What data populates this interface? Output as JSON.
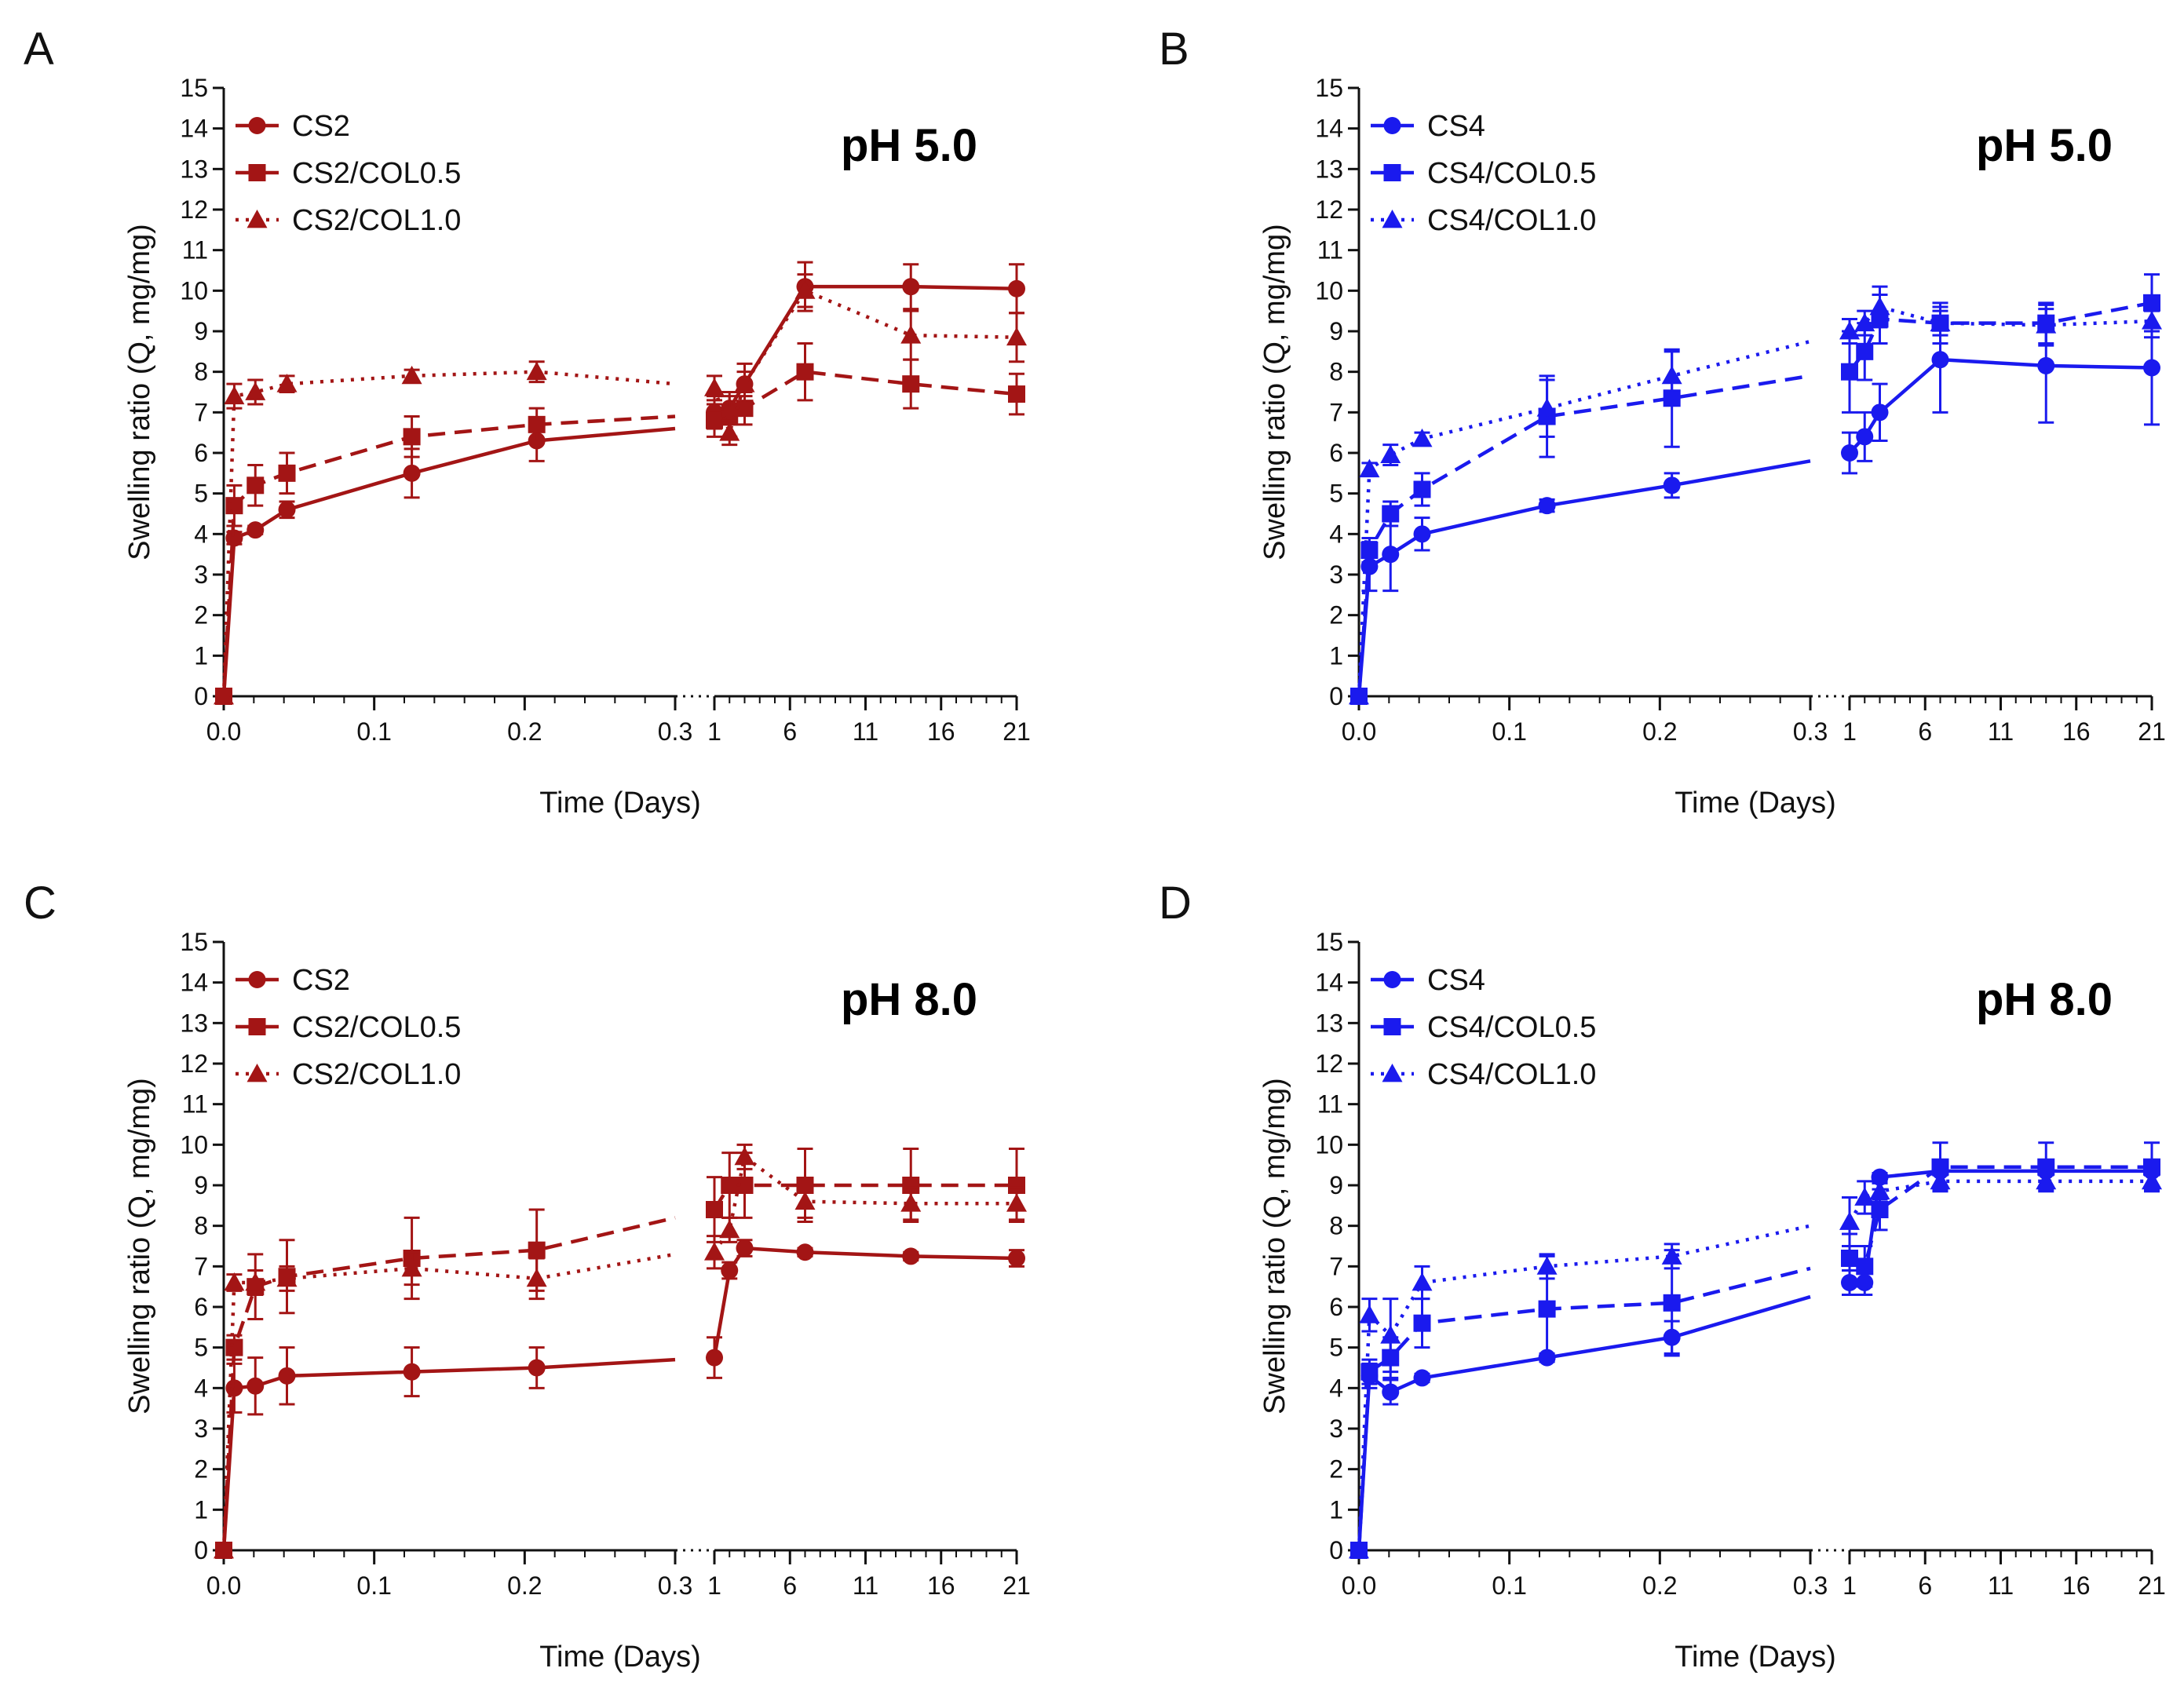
{
  "chart_data": [
    {
      "type": "line",
      "panel": "A",
      "annotation": "pH 5.0",
      "xlabel": "Time (Days)",
      "ylabel": "Swelling ratio (Q, mg/mg)",
      "ylim": [
        0,
        15
      ],
      "yticks": [
        "0",
        "1",
        "2",
        "3",
        "4",
        "5",
        "6",
        "7",
        "8",
        "9",
        "10",
        "11",
        "12",
        "13",
        "14",
        "15"
      ],
      "x_segments": [
        {
          "range": [
            0,
            0.3
          ],
          "ticks": [
            "0.0",
            "0.1",
            "0.2",
            "0.3"
          ]
        },
        {
          "range": [
            1,
            21
          ],
          "ticks": [
            "1",
            "6",
            "11",
            "16",
            "21"
          ]
        }
      ],
      "grid": false,
      "legend_position": "top-left",
      "color": "#a31515",
      "series": [
        {
          "name": "CS2",
          "marker": "circle",
          "line": "solid",
          "seg1": {
            "x": [
              0,
              0.007,
              0.021,
              0.042,
              0.125,
              0.208,
              0.3
            ],
            "y": [
              0,
              3.9,
              4.1,
              4.6,
              5.5,
              6.3,
              6.6
            ],
            "err": [
              0,
              0.15,
              0.1,
              0.2,
              0.6,
              0.5,
              0
            ]
          },
          "seg2": {
            "x": [
              1,
              2,
              3,
              7,
              14,
              21
            ],
            "y": [
              7.0,
              7.1,
              7.7,
              10.1,
              10.1,
              10.05
            ],
            "err": [
              0.4,
              0.4,
              0.5,
              0.6,
              0.55,
              0.6
            ]
          }
        },
        {
          "name": "CS2/COL0.5",
          "marker": "square",
          "line": "dashed",
          "seg1": {
            "x": [
              0,
              0.007,
              0.021,
              0.042,
              0.125,
              0.208,
              0.3
            ],
            "y": [
              0,
              4.7,
              5.2,
              5.5,
              6.4,
              6.7,
              6.9
            ],
            "err": [
              0,
              0.5,
              0.5,
              0.5,
              0.5,
              0.4,
              0
            ]
          },
          "seg2": {
            "x": [
              1,
              2,
              3,
              7,
              14,
              21
            ],
            "y": [
              6.8,
              6.9,
              7.1,
              8.0,
              7.7,
              7.45
            ],
            "err": [
              0.4,
              0.5,
              0.4,
              0.7,
              0.6,
              0.5
            ]
          }
        },
        {
          "name": "CS2/COL1.0",
          "marker": "triangle",
          "line": "dotted",
          "seg1": {
            "x": [
              0,
              0.007,
              0.021,
              0.042,
              0.125,
              0.208,
              0.3
            ],
            "y": [
              0,
              7.4,
              7.5,
              7.7,
              7.9,
              8.0,
              7.7
            ],
            "err": [
              0,
              0.3,
              0.3,
              0.2,
              0.15,
              0.25,
              0
            ]
          },
          "seg2": {
            "x": [
              1,
              2,
              3,
              7,
              14,
              21
            ],
            "y": [
              7.6,
              6.5,
              7.7,
              10.0,
              8.9,
              8.85
            ],
            "err": [
              0.3,
              0.3,
              0.3,
              0.4,
              0.6,
              0.6
            ]
          }
        }
      ]
    },
    {
      "type": "line",
      "panel": "B",
      "annotation": "pH 5.0",
      "xlabel": "Time (Days)",
      "ylabel": "Swelling ratio (Q, mg/mg)",
      "ylim": [
        0,
        15
      ],
      "yticks": [
        "0",
        "1",
        "2",
        "3",
        "4",
        "5",
        "6",
        "7",
        "8",
        "9",
        "10",
        "11",
        "12",
        "13",
        "14",
        "15"
      ],
      "x_segments": [
        {
          "range": [
            0,
            0.3
          ],
          "ticks": [
            "0.0",
            "0.1",
            "0.2",
            "0.3"
          ]
        },
        {
          "range": [
            1,
            21
          ],
          "ticks": [
            "1",
            "6",
            "11",
            "16",
            "21"
          ]
        }
      ],
      "grid": false,
      "legend_position": "top-left",
      "color": "#1a1aee",
      "series": [
        {
          "name": "CS4",
          "marker": "circle",
          "line": "solid",
          "seg1": {
            "x": [
              0,
              0.007,
              0.021,
              0.042,
              0.125,
              0.208,
              0.3
            ],
            "y": [
              0,
              3.2,
              3.5,
              4.0,
              4.7,
              5.2,
              5.8
            ],
            "err": [
              0,
              0.6,
              0.9,
              0.4,
              0.15,
              0.3,
              0
            ]
          },
          "seg2": {
            "x": [
              1,
              2,
              3,
              7,
              14,
              21
            ],
            "y": [
              6.0,
              6.4,
              7.0,
              8.3,
              8.15,
              8.1
            ],
            "err": [
              0.5,
              0.6,
              0.7,
              1.3,
              1.4,
              1.4
            ]
          }
        },
        {
          "name": "CS4/COL0.5",
          "marker": "square",
          "line": "dashed",
          "seg1": {
            "x": [
              0,
              0.007,
              0.021,
              0.042,
              0.125,
              0.208,
              0.3
            ],
            "y": [
              0,
              3.6,
              4.5,
              5.1,
              6.9,
              7.35,
              7.9
            ],
            "err": [
              0,
              0.3,
              0.3,
              0.4,
              1.0,
              1.2,
              0
            ]
          },
          "seg2": {
            "x": [
              1,
              2,
              3,
              7,
              14,
              21
            ],
            "y": [
              8.0,
              8.5,
              9.3,
              9.2,
              9.2,
              9.7
            ],
            "err": [
              1.0,
              0.7,
              0.6,
              0.5,
              0.5,
              0.7
            ]
          }
        },
        {
          "name": "CS4/COL1.0",
          "marker": "triangle",
          "line": "dotted",
          "seg1": {
            "x": [
              0,
              0.007,
              0.021,
              0.042,
              0.125,
              0.208,
              0.3
            ],
            "y": [
              0,
              5.6,
              5.95,
              6.35,
              7.1,
              7.9,
              8.75
            ],
            "err": [
              0,
              0.15,
              0.25,
              0.15,
              0.7,
              0.6,
              0
            ]
          },
          "seg2": {
            "x": [
              1,
              2,
              3,
              7,
              14,
              21
            ],
            "y": [
              9.0,
              9.2,
              9.6,
              9.2,
              9.15,
              9.25
            ],
            "err": [
              0.3,
              0.3,
              0.5,
              0.3,
              0.5,
              0.4
            ]
          }
        }
      ]
    },
    {
      "type": "line",
      "panel": "C",
      "annotation": "pH 8.0",
      "xlabel": "Time (Days)",
      "ylabel": "Swelling ratio (Q, mg/mg)",
      "ylim": [
        0,
        15
      ],
      "yticks": [
        "0",
        "1",
        "2",
        "3",
        "4",
        "5",
        "6",
        "7",
        "8",
        "9",
        "10",
        "11",
        "12",
        "13",
        "14",
        "15"
      ],
      "x_segments": [
        {
          "range": [
            0,
            0.3
          ],
          "ticks": [
            "0.0",
            "0.1",
            "0.2",
            "0.3"
          ]
        },
        {
          "range": [
            1,
            21
          ],
          "ticks": [
            "1",
            "6",
            "11",
            "16",
            "21"
          ]
        }
      ],
      "grid": false,
      "legend_position": "top-left",
      "color": "#a31515",
      "series": [
        {
          "name": "CS2",
          "marker": "circle",
          "line": "solid",
          "seg1": {
            "x": [
              0,
              0.007,
              0.021,
              0.042,
              0.125,
              0.208,
              0.3
            ],
            "y": [
              0,
              4.0,
              4.05,
              4.3,
              4.4,
              4.5,
              4.7
            ],
            "err": [
              0,
              0.6,
              0.7,
              0.7,
              0.6,
              0.5,
              0
            ]
          },
          "seg2": {
            "x": [
              1,
              2,
              3,
              7,
              14,
              21
            ],
            "y": [
              4.75,
              6.9,
              7.45,
              7.35,
              7.25,
              7.2
            ],
            "err": [
              0.5,
              0.2,
              0.2,
              0.1,
              0.1,
              0.2
            ]
          }
        },
        {
          "name": "CS2/COL0.5",
          "marker": "square",
          "line": "dashed",
          "seg1": {
            "x": [
              0,
              0.007,
              0.021,
              0.042,
              0.125,
              0.208,
              0.3
            ],
            "y": [
              0,
              5.0,
              6.5,
              6.75,
              7.2,
              7.4,
              8.2
            ],
            "err": [
              0,
              0.3,
              0.8,
              0.9,
              1.0,
              1.0,
              0
            ]
          },
          "seg2": {
            "x": [
              1,
              2,
              3,
              7,
              14,
              21
            ],
            "y": [
              8.4,
              9.0,
              9.0,
              9.0,
              9.0,
              9.0
            ],
            "err": [
              0.8,
              0.8,
              0.8,
              0.9,
              0.9,
              0.9
            ]
          }
        },
        {
          "name": "CS2/COL1.0",
          "marker": "triangle",
          "line": "dotted",
          "seg1": {
            "x": [
              0,
              0.007,
              0.021,
              0.042,
              0.125,
              0.208,
              0.3
            ],
            "y": [
              0,
              6.6,
              6.6,
              6.7,
              6.95,
              6.7,
              7.3
            ],
            "err": [
              0,
              0.2,
              0.3,
              0.3,
              0.4,
              0.5,
              0
            ]
          },
          "seg2": {
            "x": [
              1,
              2,
              3,
              7,
              14,
              21
            ],
            "y": [
              7.35,
              7.9,
              9.7,
              8.6,
              8.55,
              8.55
            ],
            "err": [
              0.4,
              0.3,
              0.3,
              0.4,
              0.4,
              0.4
            ]
          }
        }
      ]
    },
    {
      "type": "line",
      "panel": "D",
      "annotation": "pH 8.0",
      "xlabel": "Time (Days)",
      "ylabel": "Swelling ratio (Q, mg/mg)",
      "ylim": [
        0,
        15
      ],
      "yticks": [
        "0",
        "1",
        "2",
        "3",
        "4",
        "5",
        "6",
        "7",
        "8",
        "9",
        "10",
        "11",
        "12",
        "13",
        "14",
        "15"
      ],
      "x_segments": [
        {
          "range": [
            0,
            0.3
          ],
          "ticks": [
            "0.0",
            "0.1",
            "0.2",
            "0.3"
          ]
        },
        {
          "range": [
            1,
            21
          ],
          "ticks": [
            "1",
            "6",
            "11",
            "16",
            "21"
          ]
        }
      ],
      "grid": false,
      "legend_position": "top-left",
      "color": "#1a1aee",
      "series": [
        {
          "name": "CS4",
          "marker": "circle",
          "line": "solid",
          "seg1": {
            "x": [
              0,
              0.007,
              0.021,
              0.042,
              0.125,
              0.208,
              0.3
            ],
            "y": [
              0,
              4.3,
              3.9,
              4.25,
              4.75,
              5.25,
              6.25
            ],
            "err": [
              0,
              0.3,
              0.3,
              0.1,
              0.1,
              0.4,
              0
            ]
          },
          "seg2": {
            "x": [
              1,
              2,
              3,
              7,
              14,
              21
            ],
            "y": [
              6.6,
              6.6,
              9.2,
              9.35,
              9.35,
              9.35
            ],
            "err": [
              0.3,
              0.3,
              0.1,
              0.1,
              0.1,
              0.1
            ]
          }
        },
        {
          "name": "CS4/COL0.5",
          "marker": "square",
          "line": "dashed",
          "seg1": {
            "x": [
              0,
              0.007,
              0.021,
              0.042,
              0.125,
              0.208,
              0.3
            ],
            "y": [
              0,
              4.4,
              4.75,
              5.6,
              5.95,
              6.1,
              6.95
            ],
            "err": [
              0,
              0.3,
              0.5,
              0.6,
              1.3,
              1.3,
              0
            ]
          },
          "seg2": {
            "x": [
              1,
              2,
              3,
              7,
              14,
              21
            ],
            "y": [
              7.2,
              7.0,
              8.4,
              9.45,
              9.45,
              9.45
            ],
            "err": [
              0.6,
              0.5,
              0.5,
              0.6,
              0.6,
              0.6
            ]
          }
        },
        {
          "name": "CS4/COL1.0",
          "marker": "triangle",
          "line": "dotted",
          "seg1": {
            "x": [
              0,
              0.007,
              0.021,
              0.042,
              0.125,
              0.208,
              0.3
            ],
            "y": [
              0,
              5.8,
              5.3,
              6.6,
              7.0,
              7.25,
              8.0
            ],
            "err": [
              0,
              0.4,
              0.9,
              0.4,
              0.3,
              0.3,
              0
            ]
          },
          "seg2": {
            "x": [
              1,
              2,
              3,
              7,
              14,
              21
            ],
            "y": [
              8.1,
              8.7,
              8.85,
              9.1,
              9.1,
              9.1
            ],
            "err": [
              0.6,
              0.4,
              0.2,
              0.2,
              0.2,
              0.2
            ]
          }
        }
      ]
    }
  ]
}
